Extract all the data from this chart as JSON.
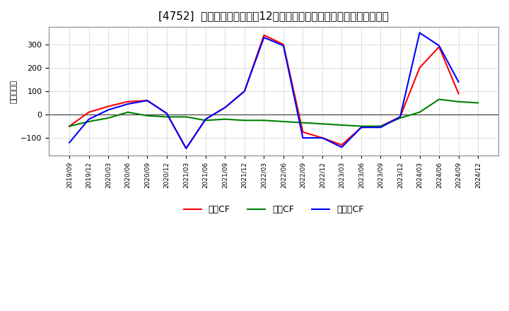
{
  "title": "[4752]  キャッシュフローの12か月移動合計の対前年同期増減額の推移",
  "ylabel": "（百万円）",
  "x_labels": [
    "2019/09",
    "2019/12",
    "2020/03",
    "2020/06",
    "2020/09",
    "2020/12",
    "2021/03",
    "2021/06",
    "2021/09",
    "2021/12",
    "2022/03",
    "2022/06",
    "2022/09",
    "2022/12",
    "2023/03",
    "2023/06",
    "2023/09",
    "2023/12",
    "2024/03",
    "2024/06",
    "2024/09",
    "2024/12"
  ],
  "operating_cf": [
    -50,
    10,
    35,
    55,
    60,
    5,
    -145,
    -20,
    30,
    100,
    340,
    300,
    -75,
    -100,
    -130,
    -55,
    -50,
    -10,
    200,
    290,
    90,
    null
  ],
  "investing_cf": [
    -50,
    -30,
    -15,
    10,
    -5,
    -10,
    -10,
    -25,
    -20,
    -25,
    -25,
    -30,
    -35,
    -40,
    -45,
    -50,
    -50,
    -15,
    10,
    65,
    55,
    50
  ],
  "free_cf": [
    -120,
    -20,
    20,
    45,
    60,
    5,
    -145,
    -20,
    30,
    100,
    330,
    295,
    -100,
    -100,
    -140,
    -55,
    -55,
    -10,
    350,
    295,
    140,
    null
  ],
  "operating_color": "#ff0000",
  "investing_color": "#008000",
  "free_color": "#0000ff",
  "line_width": 1.5,
  "ylim": [
    -175,
    375
  ],
  "yticks": [
    -100,
    0,
    100,
    200,
    300
  ],
  "title_fontsize": 11,
  "legend_labels": [
    "営業CF",
    "投資CF",
    "フリーCF"
  ],
  "background_color": "#ffffff"
}
